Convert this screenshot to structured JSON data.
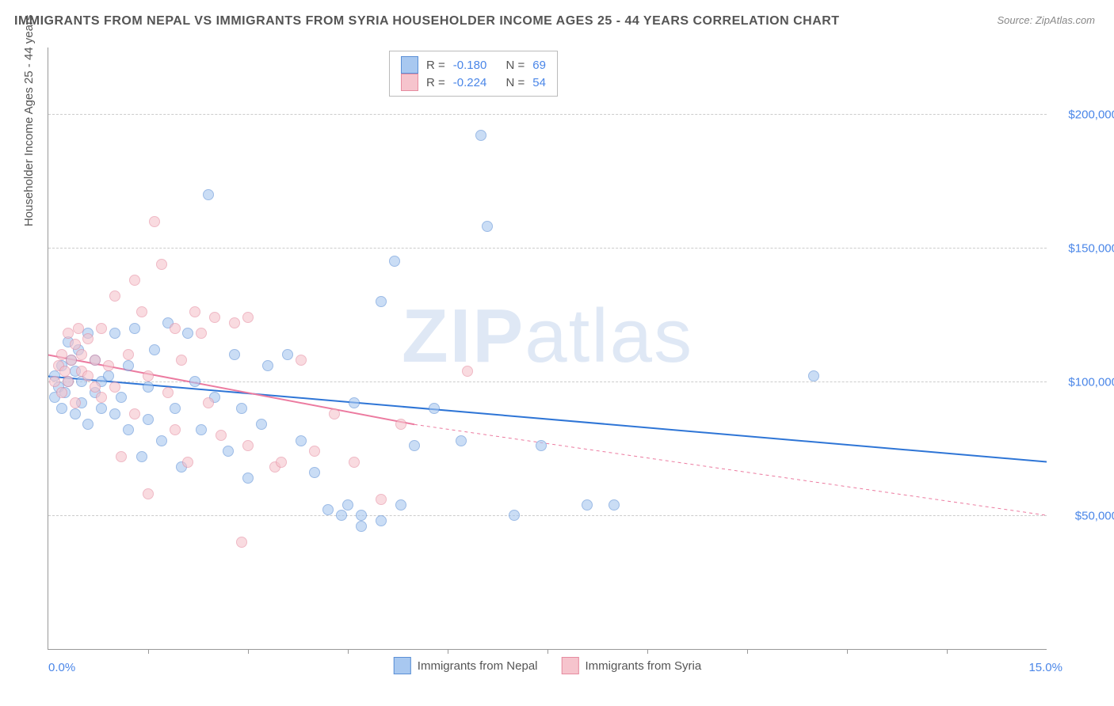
{
  "title": "IMMIGRANTS FROM NEPAL VS IMMIGRANTS FROM SYRIA HOUSEHOLDER INCOME AGES 25 - 44 YEARS CORRELATION CHART",
  "source_label": "Source: ZipAtlas.com",
  "yaxis_label": "Householder Income Ages 25 - 44 years",
  "watermark_bold": "ZIP",
  "watermark_light": "atlas",
  "chart": {
    "type": "scatter",
    "background_color": "#ffffff",
    "grid_color": "#cccccc",
    "axis_color": "#999999",
    "xlim": [
      0,
      15
    ],
    "ylim": [
      0,
      225000
    ],
    "x_ticks": [
      0,
      15
    ],
    "x_tick_labels": [
      "0.0%",
      "15.0%"
    ],
    "x_minor_ticks": [
      1.5,
      3,
      4.5,
      6,
      7.5,
      9,
      10.5,
      12,
      13.5
    ],
    "y_ticks": [
      50000,
      100000,
      150000,
      200000
    ],
    "y_tick_labels": [
      "$50,000",
      "$100,000",
      "$150,000",
      "$200,000"
    ],
    "tick_label_color": "#4a86e8",
    "tick_label_fontsize": 15,
    "marker_radius": 7,
    "marker_opacity": 0.6
  },
  "series": [
    {
      "id": "nepal",
      "legend_label": "Immigrants from Nepal",
      "color_fill": "#a8c8f0",
      "color_stroke": "#5b8fd6",
      "r_label": "R =",
      "r_value": "-0.180",
      "n_label": "N =",
      "n_value": "69",
      "trend": {
        "x1": 0,
        "y1": 102000,
        "x2": 15,
        "y2": 70000,
        "color": "#2e75d6",
        "width": 2,
        "dash": "none"
      },
      "points": [
        [
          0.1,
          94000
        ],
        [
          0.1,
          102000
        ],
        [
          0.15,
          98000
        ],
        [
          0.2,
          90000
        ],
        [
          0.2,
          106000
        ],
        [
          0.25,
          96000
        ],
        [
          0.3,
          115000
        ],
        [
          0.3,
          100000
        ],
        [
          0.35,
          108000
        ],
        [
          0.4,
          88000
        ],
        [
          0.4,
          104000
        ],
        [
          0.45,
          112000
        ],
        [
          0.5,
          92000
        ],
        [
          0.5,
          100000
        ],
        [
          0.6,
          118000
        ],
        [
          0.6,
          84000
        ],
        [
          0.7,
          96000
        ],
        [
          0.7,
          108000
        ],
        [
          0.8,
          100000
        ],
        [
          0.8,
          90000
        ],
        [
          0.9,
          102000
        ],
        [
          1.0,
          118000
        ],
        [
          1.0,
          88000
        ],
        [
          1.1,
          94000
        ],
        [
          1.2,
          106000
        ],
        [
          1.2,
          82000
        ],
        [
          1.3,
          120000
        ],
        [
          1.4,
          72000
        ],
        [
          1.5,
          98000
        ],
        [
          1.5,
          86000
        ],
        [
          1.6,
          112000
        ],
        [
          1.7,
          78000
        ],
        [
          1.8,
          122000
        ],
        [
          1.9,
          90000
        ],
        [
          2.0,
          68000
        ],
        [
          2.1,
          118000
        ],
        [
          2.2,
          100000
        ],
        [
          2.3,
          82000
        ],
        [
          2.4,
          170000
        ],
        [
          2.5,
          94000
        ],
        [
          2.7,
          74000
        ],
        [
          2.8,
          110000
        ],
        [
          2.9,
          90000
        ],
        [
          3.0,
          64000
        ],
        [
          3.2,
          84000
        ],
        [
          3.3,
          106000
        ],
        [
          3.6,
          110000
        ],
        [
          3.8,
          78000
        ],
        [
          4.0,
          66000
        ],
        [
          4.2,
          52000
        ],
        [
          4.4,
          50000
        ],
        [
          4.5,
          54000
        ],
        [
          4.6,
          92000
        ],
        [
          4.7,
          46000
        ],
        [
          4.7,
          50000
        ],
        [
          5.0,
          130000
        ],
        [
          5.0,
          48000
        ],
        [
          5.2,
          145000
        ],
        [
          5.3,
          54000
        ],
        [
          5.5,
          76000
        ],
        [
          5.8,
          90000
        ],
        [
          6.2,
          78000
        ],
        [
          6.5,
          192000
        ],
        [
          6.6,
          158000
        ],
        [
          7.0,
          50000
        ],
        [
          7.4,
          76000
        ],
        [
          8.1,
          54000
        ],
        [
          8.5,
          54000
        ],
        [
          11.5,
          102000
        ]
      ]
    },
    {
      "id": "syria",
      "legend_label": "Immigrants from Syria",
      "color_fill": "#f6c4cd",
      "color_stroke": "#e68ca0",
      "r_label": "R =",
      "r_value": "-0.224",
      "n_label": "N =",
      "n_value": "54",
      "trend": {
        "x1": 0,
        "y1": 110000,
        "x2": 5.5,
        "y2": 84000,
        "extend_x2": 15,
        "extend_y2": 50000,
        "color": "#ec7ba0",
        "width": 2,
        "dash": "4 4"
      },
      "points": [
        [
          0.1,
          100000
        ],
        [
          0.15,
          106000
        ],
        [
          0.2,
          110000
        ],
        [
          0.2,
          96000
        ],
        [
          0.25,
          104000
        ],
        [
          0.3,
          118000
        ],
        [
          0.3,
          100000
        ],
        [
          0.35,
          108000
        ],
        [
          0.4,
          114000
        ],
        [
          0.4,
          92000
        ],
        [
          0.45,
          120000
        ],
        [
          0.5,
          104000
        ],
        [
          0.5,
          110000
        ],
        [
          0.6,
          102000
        ],
        [
          0.6,
          116000
        ],
        [
          0.7,
          98000
        ],
        [
          0.7,
          108000
        ],
        [
          0.8,
          120000
        ],
        [
          0.8,
          94000
        ],
        [
          0.9,
          106000
        ],
        [
          1.0,
          132000
        ],
        [
          1.0,
          98000
        ],
        [
          1.1,
          72000
        ],
        [
          1.2,
          110000
        ],
        [
          1.3,
          88000
        ],
        [
          1.3,
          138000
        ],
        [
          1.4,
          126000
        ],
        [
          1.5,
          102000
        ],
        [
          1.5,
          58000
        ],
        [
          1.6,
          160000
        ],
        [
          1.7,
          144000
        ],
        [
          1.8,
          96000
        ],
        [
          1.9,
          120000
        ],
        [
          1.9,
          82000
        ],
        [
          2.0,
          108000
        ],
        [
          2.1,
          70000
        ],
        [
          2.2,
          126000
        ],
        [
          2.3,
          118000
        ],
        [
          2.4,
          92000
        ],
        [
          2.5,
          124000
        ],
        [
          2.6,
          80000
        ],
        [
          2.8,
          122000
        ],
        [
          2.9,
          40000
        ],
        [
          3.0,
          124000
        ],
        [
          3.0,
          76000
        ],
        [
          3.4,
          68000
        ],
        [
          3.5,
          70000
        ],
        [
          3.8,
          108000
        ],
        [
          4.0,
          74000
        ],
        [
          4.3,
          88000
        ],
        [
          4.6,
          70000
        ],
        [
          5.0,
          56000
        ],
        [
          5.3,
          84000
        ],
        [
          6.3,
          104000
        ]
      ]
    }
  ]
}
